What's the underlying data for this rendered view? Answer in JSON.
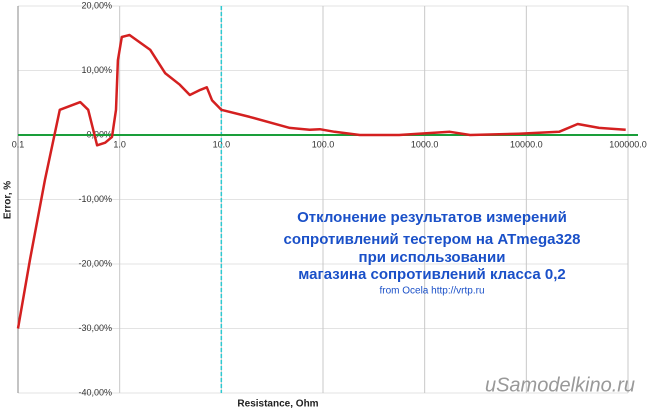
{
  "chart_data": {
    "type": "line",
    "xlabel": "Resistance, Ohm",
    "ylabel": "Error, %",
    "x_scale": "log",
    "xlim": [
      0.1,
      100000
    ],
    "ylim": [
      -40,
      20
    ],
    "xticks": [
      0.1,
      {
        "value": 1,
        "label": "1.0"
      },
      {
        "value": 10,
        "label": "10.0"
      },
      {
        "value": 100,
        "label": "100.0"
      },
      {
        "value": 1000,
        "label": "1000.0"
      },
      {
        "value": 10000,
        "label": "10000.0"
      },
      {
        "value": 100000,
        "label": "100000.0"
      }
    ],
    "yticks": [
      {
        "value": 20,
        "label": "20,00%"
      },
      {
        "value": 10,
        "label": "10,00%"
      },
      {
        "value": 0,
        "label": "0,00%"
      },
      {
        "value": -10,
        "label": "-10,00%"
      },
      {
        "value": -20,
        "label": "-20,00%"
      },
      {
        "value": -30,
        "label": "-30,00%"
      },
      {
        "value": -40,
        "label": "-40,00%"
      }
    ],
    "grid": true,
    "zero_line_color": "#1a9e3a",
    "highlight_x": 10,
    "highlight_color": "#2ec9d0",
    "series": [
      {
        "color": "#d42020",
        "x": [
          0.1,
          0.131,
          0.184,
          0.258,
          0.41,
          0.49,
          0.6,
          0.72,
          0.84,
          0.92,
          0.96,
          1.05,
          1.25,
          2.0,
          2.8,
          3.9,
          4.9,
          6.2,
          7.2,
          8.1,
          10,
          19,
          47,
          74,
          93,
          130,
          230,
          560,
          1770,
          2800,
          8400,
          21000,
          32000,
          52000,
          95000
        ],
        "values": [
          -30,
          -19.4,
          -7,
          3.9,
          5.1,
          3.9,
          -1.6,
          -1.2,
          -0.3,
          3.9,
          11.6,
          15.2,
          15.5,
          13.2,
          9.6,
          7.8,
          6.2,
          7.0,
          7.4,
          5.4,
          3.9,
          2.8,
          1.1,
          0.8,
          0.9,
          0.5,
          0,
          0,
          0.5,
          0,
          0.2,
          0.5,
          1.7,
          1.1,
          0.8
        ]
      }
    ],
    "annotation_lines": [
      "Отклонение результатов измерений",
      "сопротивлений тестером на ATmega328",
      "при использовании",
      "магазина сопротивлений класса 0,2"
    ],
    "source": "from Ocela http://vrtp.ru",
    "watermark": "uSamodelkino.ru"
  }
}
